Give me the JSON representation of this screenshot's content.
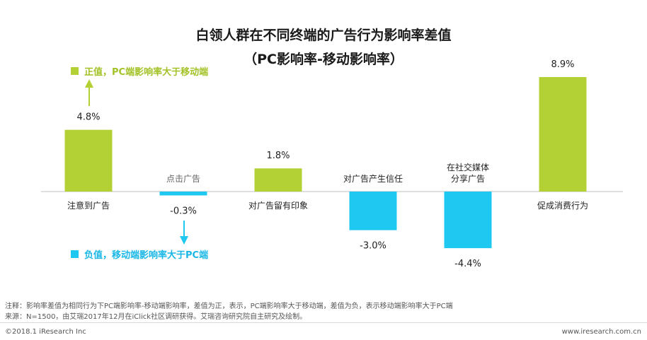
{
  "title_line1": "白领人群在不同终端的广告行为影响率差值",
  "title_line2": "（PC影响率-移动影响率）",
  "legend": {
    "positive": "正值，PC端影响率大于移动端",
    "negative": "负值，移动端影响率大于PC端"
  },
  "colors": {
    "positive": "#b3d134",
    "negative": "#1fc8f0"
  },
  "chart_data": {
    "type": "bar",
    "categories": [
      "注意到广告",
      "点击广告",
      "对广告留有印象",
      "对广告产生信任",
      "在社交媒体分享广告",
      "促成消费行为"
    ],
    "category_lines": [
      [
        "注意到广告"
      ],
      [
        "点击广告"
      ],
      [
        "对广告留有印象"
      ],
      [
        "对广告产生信任"
      ],
      [
        "在社交媒体",
        "分享广告"
      ],
      [
        "促成消费行为"
      ]
    ],
    "values": [
      4.8,
      -0.3,
      1.8,
      -3.0,
      -4.4,
      8.9
    ],
    "value_labels": [
      "4.8%",
      "-0.3%",
      "1.8%",
      "-3.0%",
      "-4.4%",
      "8.9%"
    ],
    "unit": "%",
    "grid": false,
    "legend_position": "left"
  },
  "notes": {
    "line1": "注释：影响率差值为相同行为下PC端影响率-移动端影响率，差值为正，表示，PC端影响率大于移动端，差值为负，表示移动端影响率大于PC端",
    "line2": "来源：N=1500，由艾瑞2017年12月在iClick社区调研获得。艾瑞咨询研究院自主研究及绘制。"
  },
  "footer": {
    "copyright": "©2018.1 iResearch Inc",
    "website": "www.iresearch.com.cn"
  }
}
